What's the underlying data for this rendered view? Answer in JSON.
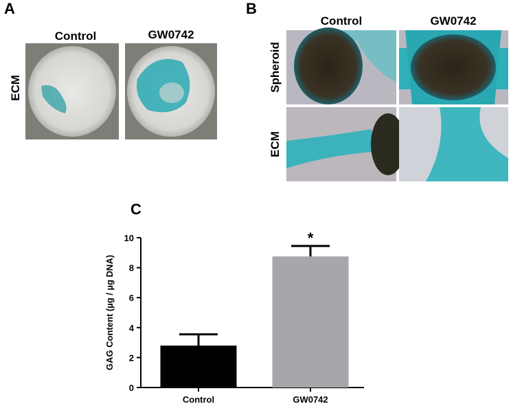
{
  "panels": {
    "a": {
      "label": "A",
      "columns": [
        "Control",
        "GW0742"
      ],
      "rows": [
        "ECM"
      ]
    },
    "b": {
      "label": "B",
      "columns": [
        "Control",
        "GW0742"
      ],
      "rows": [
        "Spheroid",
        "ECM"
      ]
    },
    "c": {
      "label": "C"
    }
  },
  "chart_data": {
    "type": "bar",
    "y_label": "GAG Content (µg / µg DNA)",
    "categories": [
      "Control",
      "GW0742"
    ],
    "values": [
      2.8,
      8.75
    ],
    "errors": [
      0.75,
      0.7
    ],
    "colors": [
      "#000000",
      "#a7a6ab"
    ],
    "annotation": "*",
    "ylim": [
      0,
      10
    ],
    "yticks": [
      0,
      2,
      4,
      6,
      8,
      10
    ]
  }
}
